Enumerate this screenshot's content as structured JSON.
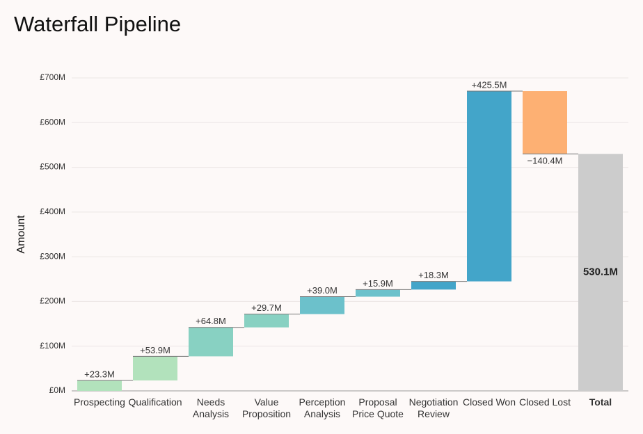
{
  "chart_data": {
    "type": "waterfall",
    "title": "Waterfall Pipeline",
    "y_label": "Amount",
    "categories": [
      "Prospecting",
      "Qualification",
      "Needs Analysis",
      "Value Proposition",
      "Perception Analysis",
      "Proposal Price Quote",
      "Negotiation Review",
      "Closed Won",
      "Closed Lost",
      "Total"
    ],
    "values": [
      23.3,
      53.9,
      64.8,
      29.7,
      39.0,
      15.9,
      18.3,
      425.5,
      -140.4,
      530.1
    ],
    "value_labels": [
      "+23.3M",
      "+53.9M",
      "+64.8M",
      "+29.7M",
      "+39.0M",
      "+15.9M",
      "+18.3M",
      "+425.5M",
      "−140.4M",
      "530.1M"
    ],
    "measure": [
      "relative",
      "relative",
      "relative",
      "relative",
      "relative",
      "relative",
      "relative",
      "relative",
      "relative",
      "total"
    ],
    "colors": [
      "#b2e2bc",
      "#b2e2bc",
      "#88d1c2",
      "#88d1c2",
      "#6cc1cb",
      "#6cc1cb",
      "#43a5c9",
      "#43a5c9",
      "#fdb073",
      "#cccccc"
    ],
    "ylim": [
      0,
      700
    ],
    "yticks": [
      {
        "value": 0,
        "label": "£0M"
      },
      {
        "value": 100,
        "label": "£100M"
      },
      {
        "value": 200,
        "label": "£200M"
      },
      {
        "value": 300,
        "label": "£300M"
      },
      {
        "value": 400,
        "label": "£400M"
      },
      {
        "value": 500,
        "label": "£500M"
      },
      {
        "value": 600,
        "label": "£600M"
      },
      {
        "value": 700,
        "label": "£700M"
      }
    ],
    "grid": true
  }
}
